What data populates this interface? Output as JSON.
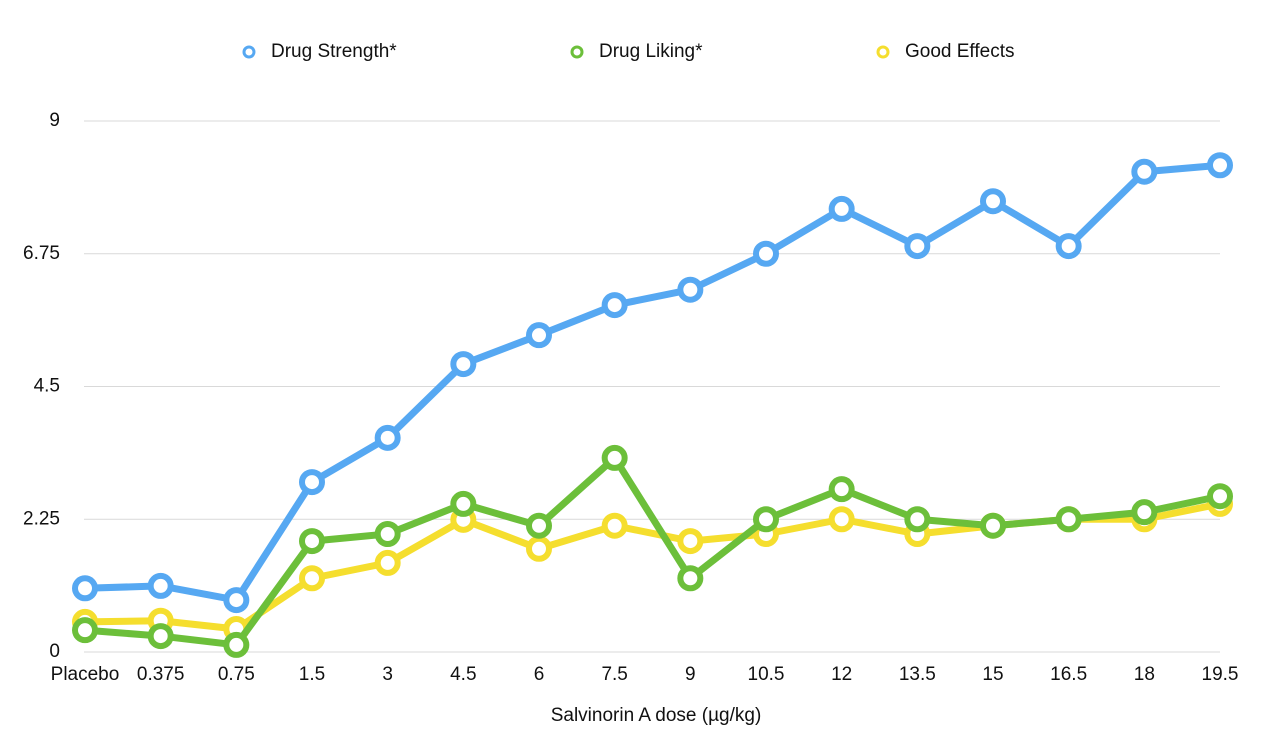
{
  "chart_data": {
    "type": "line",
    "x_label": "Salvinorin A dose (µg/kg)",
    "categories": [
      "Placebo",
      "0.375",
      "0.75",
      "1.5",
      "3",
      "4.5",
      "6",
      "7.5",
      "9",
      "10.5",
      "12",
      "13.5",
      "15",
      "16.5",
      "18",
      "19.5"
    ],
    "series": [
      {
        "name": "Drug Strength*",
        "color": "#56a8f2",
        "values": [
          1.08,
          1.12,
          0.88,
          2.88,
          3.63,
          4.88,
          5.37,
          5.88,
          6.14,
          6.75,
          7.51,
          6.88,
          7.64,
          6.88,
          8.14,
          8.25
        ]
      },
      {
        "name": "Drug Liking*",
        "color": "#6cbf3a",
        "values": [
          0.37,
          0.27,
          0.12,
          1.88,
          2.0,
          2.51,
          2.14,
          3.29,
          1.25,
          2.25,
          2.76,
          2.25,
          2.14,
          2.25,
          2.37,
          2.64
        ]
      },
      {
        "name": "Good Effects",
        "color": "#f5de2e",
        "values": [
          0.51,
          0.53,
          0.39,
          1.25,
          1.51,
          2.24,
          1.75,
          2.14,
          1.88,
          2.0,
          2.25,
          2.0,
          2.14,
          2.25,
          2.25,
          2.51
        ]
      }
    ],
    "ylim": [
      0,
      9
    ],
    "yticks": [
      0,
      2.25,
      4.5,
      6.75,
      9
    ],
    "grid": true,
    "legend": "top"
  }
}
